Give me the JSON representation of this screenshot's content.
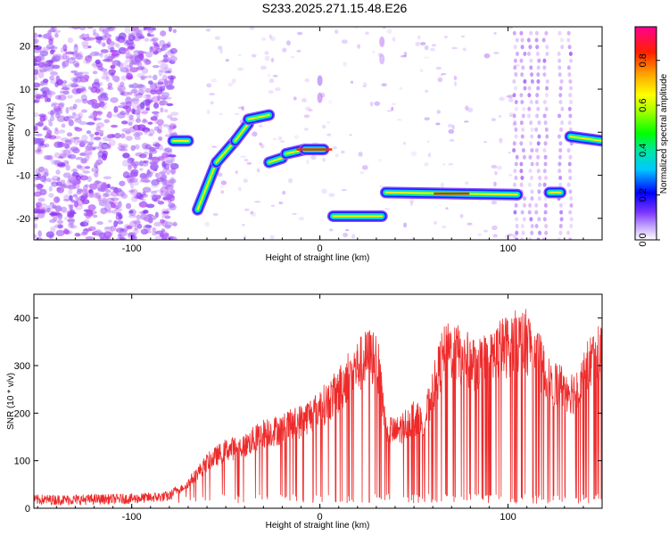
{
  "title": "S233.2025.271.15.48.E26",
  "colors": {
    "snr_line": "#ee2a2a",
    "background_dots": "#8a5cf0",
    "frame": "#000000"
  },
  "chart_data": [
    {
      "type": "heatmap",
      "name": "spectrogram",
      "xlabel": "Height of straight line (km)",
      "ylabel": "Frequency (Hz)",
      "xlim": [
        -152,
        150
      ],
      "ylim": [
        -25,
        24.5
      ],
      "xticks": [
        -100,
        0,
        100
      ],
      "yticks": [
        -20,
        -10,
        0,
        10,
        20
      ],
      "colorbar": {
        "label": "Normalized spectral amplitude",
        "range": [
          0.0,
          0.95
        ],
        "ticks": [
          0.0,
          0.2,
          0.4,
          0.6,
          0.8
        ],
        "tick_labels": [
          "0.0",
          "0.2",
          "0.4",
          "0.6",
          "0.8"
        ],
        "colormap": "rainbow"
      },
      "ridge_segments": [
        {
          "x": [
            -78,
            -70
          ],
          "y": [
            -2,
            -2
          ]
        },
        {
          "x": [
            -65,
            -55
          ],
          "y": [
            -18,
            -7
          ]
        },
        {
          "x": [
            -55,
            -45
          ],
          "y": [
            -7,
            -2
          ]
        },
        {
          "x": [
            -45,
            -38
          ],
          "y": [
            -2,
            2
          ]
        },
        {
          "x": [
            -38,
            -27
          ],
          "y": [
            3,
            4
          ]
        },
        {
          "x": [
            -27,
            -20
          ],
          "y": [
            -7,
            -6
          ]
        },
        {
          "x": [
            -18,
            -8
          ],
          "y": [
            -5,
            -4
          ]
        },
        {
          "x": [
            -8,
            2
          ],
          "y": [
            -4,
            -4
          ]
        },
        {
          "x": [
            7,
            33
          ],
          "y": [
            -19.5,
            -19.5
          ]
        },
        {
          "x": [
            35,
            105
          ],
          "y": [
            -14,
            -14.5
          ]
        },
        {
          "x": [
            122,
            128
          ],
          "y": [
            -14,
            -14
          ]
        },
        {
          "x": [
            133,
            150
          ],
          "y": [
            -1,
            -2
          ]
        }
      ]
    },
    {
      "type": "line",
      "name": "snr",
      "xlabel": "Height of straight line (km)",
      "ylabel": "SNR (10 * v/v)",
      "xlim": [
        -152,
        150
      ],
      "ylim": [
        0,
        450
      ],
      "xticks": [
        -100,
        0,
        100
      ],
      "yticks": [
        0,
        100,
        200,
        300,
        400
      ],
      "envelope": {
        "x": [
          -152,
          -130,
          -100,
          -80,
          -70,
          -60,
          -50,
          -40,
          -30,
          -20,
          -10,
          0,
          10,
          15,
          20,
          25,
          30,
          35,
          40,
          45,
          50,
          55,
          60,
          65,
          70,
          80,
          90,
          95,
          100,
          105,
          110,
          115,
          120,
          125,
          130,
          135,
          140,
          145,
          150
        ],
        "y": [
          18,
          18,
          20,
          25,
          60,
          110,
          140,
          150,
          180,
          190,
          210,
          240,
          280,
          320,
          340,
          360,
          370,
          200,
          180,
          200,
          220,
          200,
          280,
          360,
          380,
          350,
          350,
          380,
          390,
          400,
          400,
          380,
          310,
          300,
          290,
          280,
          320,
          360,
          380
        ]
      }
    }
  ]
}
